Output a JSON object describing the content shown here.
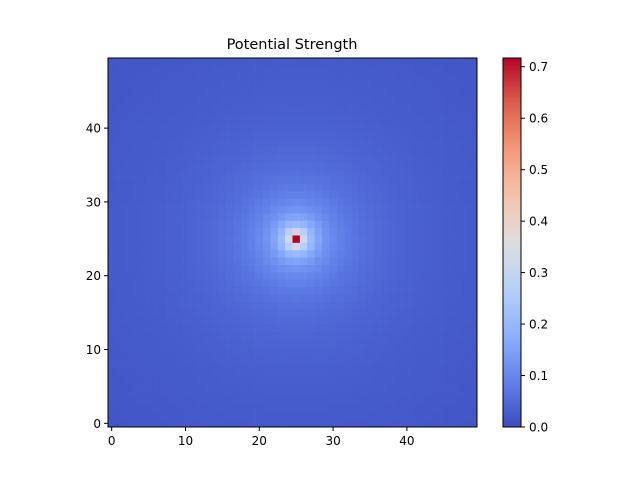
{
  "chart_data": {
    "type": "heatmap",
    "title": "Potential Strength",
    "xlabel": "",
    "ylabel": "",
    "grid_size": [
      50,
      50
    ],
    "peak": {
      "x": 25,
      "y": 25,
      "value": 0.717
    },
    "value_model": "value ≈ 0.717 / (1 + 1.2 · distance_from_peak) in grid cells",
    "xlim": [
      -0.5,
      49.5
    ],
    "ylim": [
      -0.5,
      49.5
    ],
    "x_ticks": [
      0,
      10,
      20,
      30,
      40
    ],
    "y_ticks": [
      0,
      10,
      20,
      30,
      40
    ],
    "x_tick_labels": [
      "0",
      "10",
      "20",
      "30",
      "40"
    ],
    "y_tick_labels": [
      "0",
      "10",
      "20",
      "30",
      "40"
    ],
    "colormap": "coolwarm",
    "colorbar": {
      "vmin": 0.0,
      "vmax": 0.717,
      "ticks": [
        0.0,
        0.1,
        0.2,
        0.3,
        0.4,
        0.5,
        0.6,
        0.7
      ],
      "tick_labels": [
        "0.0",
        "0.1",
        "0.2",
        "0.3",
        "0.4",
        "0.5",
        "0.6",
        "0.7"
      ]
    },
    "grid": false,
    "legend": "none"
  }
}
